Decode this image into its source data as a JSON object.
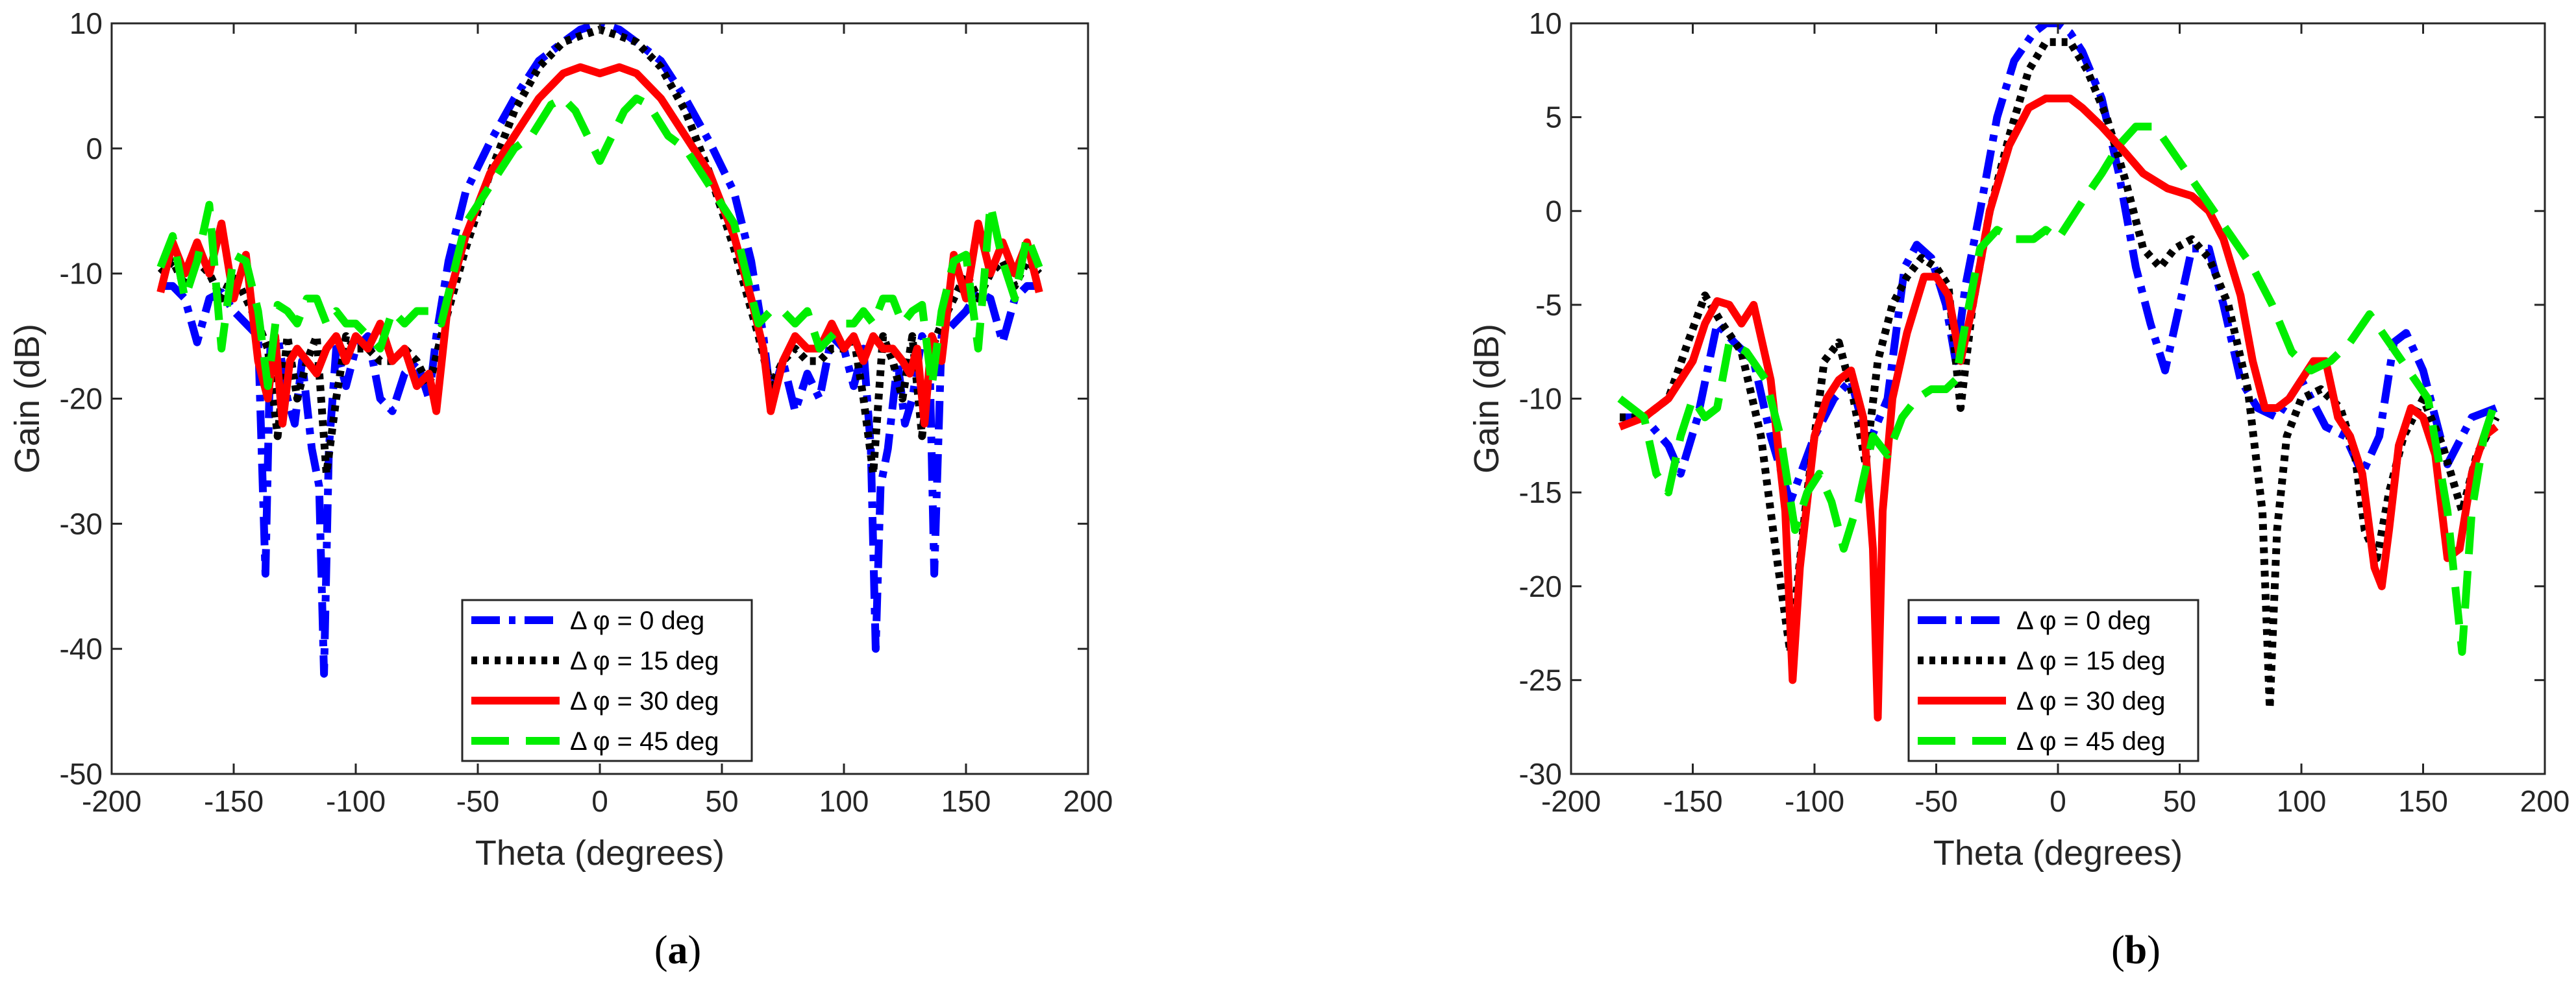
{
  "chart_data": [
    {
      "type": "line",
      "panel_label": "a",
      "xlabel": "Theta (degrees)",
      "ylabel": "Gain (dB)",
      "xlim": [
        -200,
        200
      ],
      "ylim": [
        -50,
        10
      ],
      "xticks": [
        -200,
        -150,
        -100,
        -50,
        0,
        50,
        100,
        150,
        200
      ],
      "yticks": [
        10,
        0,
        -10,
        -20,
        -30,
        -40,
        -50
      ],
      "grid": false,
      "legend_position": "bottom-right",
      "series": [
        {
          "name": "Δ φ = 0 deg",
          "color": "#0000ff",
          "style": "dashdot",
          "x": [
            -180,
            -175,
            -170,
            -165,
            -160,
            -155,
            -150,
            -145,
            -140,
            -137,
            -135,
            -132,
            -128,
            -125,
            -122,
            -118,
            -115,
            -113,
            -111,
            -108,
            -104,
            -100,
            -95,
            -90,
            -85,
            -80,
            -75,
            -70,
            -67,
            -62,
            -55,
            -45,
            -35,
            -25,
            -15,
            -8,
            0,
            8,
            15,
            25,
            35,
            45,
            55,
            62,
            67,
            70,
            75,
            80,
            85,
            90,
            95,
            100,
            104,
            108,
            111,
            113,
            115,
            118,
            122,
            125,
            128,
            132,
            135,
            137,
            140,
            145,
            150,
            155,
            160,
            165,
            170,
            175,
            180
          ],
          "y": [
            -11,
            -11,
            -12,
            -15.5,
            -12,
            -11.5,
            -13,
            -14,
            -15,
            -34,
            -16,
            -15,
            -20,
            -22,
            -17,
            -24,
            -27,
            -42,
            -24,
            -16,
            -19,
            -16,
            -15,
            -20,
            -21,
            -18,
            -17,
            -20,
            -15,
            -9,
            -3.5,
            0.5,
            4,
            7,
            8.5,
            9.5,
            10,
            9.5,
            8.5,
            7,
            4,
            0.5,
            -3.5,
            -9,
            -15,
            -20,
            -17,
            -21,
            -18,
            -20,
            -15,
            -16,
            -19,
            -16,
            -24,
            -40,
            -27,
            -24,
            -17,
            -22,
            -20,
            -15,
            -16,
            -34,
            -15,
            -14,
            -13,
            -11.5,
            -12,
            -15.5,
            -12,
            -11,
            -11
          ]
        },
        {
          "name": "Δ φ = 15 deg",
          "color": "#000000",
          "style": "dotted",
          "x": [
            -180,
            -175,
            -170,
            -165,
            -160,
            -155,
            -150,
            -145,
            -140,
            -136,
            -132,
            -128,
            -124,
            -120,
            -116,
            -112,
            -108,
            -104,
            -100,
            -95,
            -90,
            -85,
            -80,
            -75,
            -70,
            -65,
            -55,
            -45,
            -35,
            -25,
            -15,
            -8,
            0,
            8,
            15,
            25,
            35,
            45,
            55,
            65,
            70,
            75,
            80,
            85,
            90,
            95,
            100,
            104,
            108,
            112,
            116,
            120,
            124,
            128,
            132,
            136,
            140,
            145,
            150,
            155,
            160,
            165,
            170,
            175,
            180
          ],
          "y": [
            -10,
            -9,
            -11,
            -9,
            -10,
            -12,
            -10,
            -12,
            -14,
            -16,
            -23,
            -15,
            -20,
            -17,
            -15,
            -26,
            -20,
            -15,
            -16,
            -16,
            -17,
            -17,
            -16,
            -17,
            -19,
            -15,
            -8,
            -2,
            3,
            6.5,
            8.5,
            9,
            9.5,
            9,
            8.5,
            6.5,
            3,
            -2,
            -8,
            -15,
            -19,
            -17,
            -16,
            -17,
            -17,
            -16,
            -16,
            -15,
            -20,
            -26,
            -15,
            -17,
            -20,
            -15,
            -23,
            -16,
            -14,
            -12,
            -10,
            -12,
            -10,
            -9,
            -11,
            -9,
            -10
          ]
        },
        {
          "name": "Δ φ = 30 deg",
          "color": "#ff0000",
          "style": "solid",
          "x": [
            -180,
            -175,
            -170,
            -165,
            -160,
            -155,
            -150,
            -145,
            -140,
            -136,
            -133,
            -130,
            -127,
            -124,
            -120,
            -116,
            -112,
            -108,
            -104,
            -100,
            -95,
            -90,
            -85,
            -80,
            -75,
            -70,
            -67,
            -62,
            -55,
            -45,
            -35,
            -25,
            -15,
            -8,
            0,
            8,
            15,
            25,
            35,
            45,
            55,
            62,
            67,
            70,
            75,
            80,
            85,
            90,
            95,
            100,
            104,
            108,
            112,
            116,
            120,
            124,
            127,
            130,
            133,
            136,
            140,
            145,
            150,
            155,
            160,
            165,
            170,
            175,
            180
          ],
          "y": [
            -11.5,
            -7.5,
            -10,
            -7.5,
            -10,
            -6,
            -12,
            -8.5,
            -17,
            -20,
            -15,
            -22,
            -17,
            -16,
            -17,
            -18,
            -16,
            -15,
            -17,
            -15,
            -16,
            -14,
            -17,
            -16,
            -19,
            -18,
            -21,
            -12,
            -7,
            -2,
            1,
            4,
            6,
            6.5,
            6,
            6.5,
            6,
            4,
            1,
            -2,
            -7,
            -12,
            -16,
            -21,
            -17,
            -15,
            -16,
            -16,
            -14,
            -16,
            -15,
            -17,
            -15,
            -16,
            -16,
            -17,
            -18,
            -16,
            -22,
            -15,
            -17,
            -8.5,
            -12,
            -6,
            -10,
            -7.5,
            -10,
            -7.5,
            -11.5
          ]
        },
        {
          "name": "Δ φ = 45 deg",
          "color": "#00ee00",
          "style": "dashed",
          "x": [
            -180,
            -175,
            -170,
            -165,
            -160,
            -155,
            -150,
            -145,
            -140,
            -136,
            -132,
            -128,
            -124,
            -120,
            -116,
            -112,
            -108,
            -104,
            -100,
            -95,
            -90,
            -85,
            -80,
            -75,
            -70,
            -65,
            -55,
            -45,
            -35,
            -28,
            -20,
            -15,
            -10,
            -5,
            0,
            5,
            10,
            15,
            20,
            28,
            35,
            45,
            55,
            65,
            70,
            75,
            80,
            85,
            90,
            95,
            100,
            104,
            108,
            112,
            116,
            120,
            124,
            128,
            132,
            136,
            140,
            145,
            150,
            155,
            160,
            165,
            170,
            175,
            180
          ],
          "y": [
            -9.5,
            -7,
            -12,
            -9,
            -4.5,
            -16,
            -8.5,
            -9,
            -13,
            -19,
            -12.5,
            -13,
            -14,
            -12,
            -12,
            -14,
            -13,
            -14,
            -14,
            -15,
            -16,
            -13,
            -14,
            -13,
            -13,
            -14,
            -6,
            -3,
            0,
            1,
            3.5,
            4,
            3,
            1,
            -1,
            1,
            3,
            4,
            3.5,
            1,
            0,
            -3,
            -6,
            -14,
            -13,
            -13,
            -14,
            -13,
            -16,
            -15,
            -14,
            -14,
            -13,
            -14,
            -12,
            -12,
            -14,
            -13,
            -12.5,
            -19,
            -13,
            -9,
            -8.5,
            -16,
            -4.5,
            -9,
            -12,
            -7,
            -9.5
          ]
        }
      ]
    },
    {
      "type": "line",
      "panel_label": "b",
      "xlabel": "Theta (degrees)",
      "ylabel": "Gain (dB)",
      "xlim": [
        -200,
        200
      ],
      "ylim": [
        -30,
        10
      ],
      "xticks": [
        -200,
        -150,
        -100,
        -50,
        0,
        50,
        100,
        150,
        200
      ],
      "yticks": [
        10,
        5,
        0,
        -5,
        -10,
        -15,
        -20,
        -25,
        -30
      ],
      "grid": false,
      "legend_position": "bottom-center",
      "series": [
        {
          "name": "Δ φ = 0 deg",
          "color": "#0000ff",
          "style": "dashdot",
          "x": [
            -180,
            -170,
            -160,
            -155,
            -148,
            -140,
            -133,
            -125,
            -118,
            -110,
            -100,
            -92,
            -85,
            -78,
            -70,
            -63,
            -58,
            -52,
            -46,
            -42,
            -38,
            -32,
            -25,
            -18,
            -10,
            -5,
            0,
            5,
            10,
            18,
            25,
            32,
            38,
            44,
            50,
            55,
            62,
            68,
            75,
            82,
            90,
            100,
            110,
            118,
            125,
            132,
            138,
            143,
            150,
            160,
            170,
            180
          ],
          "y": [
            -11,
            -11,
            -12.5,
            -14,
            -11,
            -6,
            -7,
            -8,
            -12,
            -15.5,
            -12,
            -10,
            -9,
            -12.5,
            -10,
            -3,
            -1.8,
            -2.5,
            -5,
            -8,
            -4,
            0,
            5,
            8,
            9.5,
            10,
            10,
            9.5,
            8.5,
            6,
            2,
            -3,
            -6,
            -8.5,
            -5,
            -2,
            -2,
            -5,
            -9,
            -10.5,
            -11,
            -9,
            -11.5,
            -12,
            -14,
            -12,
            -7,
            -6.5,
            -8.5,
            -13.5,
            -11,
            -10.5
          ]
        },
        {
          "name": "Δ φ = 15 deg",
          "color": "#000000",
          "style": "dotted",
          "x": [
            -180,
            -170,
            -160,
            -152,
            -145,
            -138,
            -130,
            -122,
            -116,
            -110,
            -103,
            -96,
            -90,
            -84,
            -79,
            -74,
            -68,
            -62,
            -56,
            -50,
            -45,
            -40,
            -35,
            -28,
            -20,
            -12,
            -5,
            0,
            5,
            12,
            20,
            28,
            35,
            42,
            48,
            55,
            62,
            70,
            78,
            84,
            87,
            90,
            94,
            100,
            108,
            116,
            122,
            126,
            131,
            136,
            142,
            150,
            158,
            166,
            172,
            180
          ],
          "y": [
            -11,
            -11,
            -10,
            -7,
            -4.5,
            -6,
            -7.5,
            -12,
            -18,
            -23.5,
            -15,
            -8,
            -7,
            -10,
            -13.5,
            -8,
            -5,
            -3.5,
            -2.5,
            -3,
            -4,
            -10.5,
            -5,
            0,
            4,
            7.5,
            9,
            9,
            9,
            7.5,
            5,
            1.5,
            -2,
            -3,
            -2,
            -1.5,
            -2.5,
            -5,
            -9.5,
            -16,
            -26.5,
            -17,
            -12,
            -10,
            -9.5,
            -10.5,
            -13,
            -17,
            -18.5,
            -15,
            -12,
            -10,
            -12.5,
            -16,
            -13,
            -11
          ]
        },
        {
          "name": "Δ φ = 30 deg",
          "color": "#ff0000",
          "style": "solid",
          "x": [
            -180,
            -170,
            -160,
            -150,
            -145,
            -140,
            -135,
            -130,
            -125,
            -118,
            -112,
            -109,
            -106,
            -100,
            -95,
            -90,
            -85,
            -80,
            -76,
            -74,
            -72,
            -68,
            -62,
            -55,
            -50,
            -45,
            -40,
            -35,
            -28,
            -20,
            -12,
            -5,
            0,
            5,
            10,
            18,
            25,
            35,
            45,
            55,
            62,
            68,
            75,
            80,
            85,
            90,
            95,
            100,
            105,
            110,
            115,
            120,
            125,
            130,
            133,
            136,
            140,
            145,
            150,
            155,
            160,
            165,
            170,
            175,
            180
          ],
          "y": [
            -11.5,
            -11,
            -10,
            -8,
            -6,
            -4.8,
            -5,
            -6,
            -5,
            -9,
            -16,
            -25,
            -19,
            -12,
            -10,
            -9,
            -8.5,
            -11,
            -18,
            -27,
            -16,
            -10,
            -6.5,
            -3.5,
            -3.5,
            -4.5,
            -8,
            -5,
            0,
            3.5,
            5.5,
            6,
            6,
            6,
            5.5,
            4.5,
            3.5,
            2,
            1.2,
            0.8,
            0,
            -1.5,
            -4.5,
            -8,
            -10.5,
            -10.5,
            -10,
            -9,
            -8,
            -8,
            -11,
            -12,
            -14,
            -19,
            -20,
            -17,
            -12.5,
            -10.5,
            -11,
            -13,
            -18.5,
            -18,
            -14,
            -12,
            -11.5
          ]
        },
        {
          "name": "Δ φ = 45 deg",
          "color": "#00ee00",
          "style": "dashed",
          "x": [
            -180,
            -170,
            -165,
            -160,
            -155,
            -150,
            -145,
            -140,
            -135,
            -128,
            -120,
            -114,
            -108,
            -103,
            -98,
            -93,
            -88,
            -82,
            -76,
            -70,
            -64,
            -58,
            -52,
            -46,
            -42,
            -38,
            -32,
            -25,
            -18,
            -10,
            -5,
            0,
            5,
            10,
            18,
            25,
            32,
            40,
            48,
            56,
            64,
            72,
            80,
            88,
            96,
            104,
            112,
            120,
            128,
            136,
            144,
            152,
            160,
            166,
            170,
            175,
            180
          ],
          "y": [
            -10,
            -11,
            -14,
            -15,
            -12,
            -10,
            -11,
            -10.5,
            -7,
            -7.5,
            -9,
            -12,
            -17,
            -15,
            -14,
            -15.5,
            -18,
            -15.5,
            -12,
            -13,
            -11,
            -10,
            -9.5,
            -9.5,
            -9,
            -6,
            -2,
            -1,
            -1.5,
            -1.5,
            -1,
            -1.5,
            -0.5,
            0.5,
            2,
            3.5,
            4.5,
            4.5,
            3,
            1.5,
            0,
            -1.5,
            -3,
            -5,
            -7.5,
            -8.5,
            -8,
            -7,
            -5.5,
            -7,
            -8.5,
            -10,
            -16,
            -23.5,
            -16,
            -12,
            -10
          ]
        }
      ]
    }
  ]
}
